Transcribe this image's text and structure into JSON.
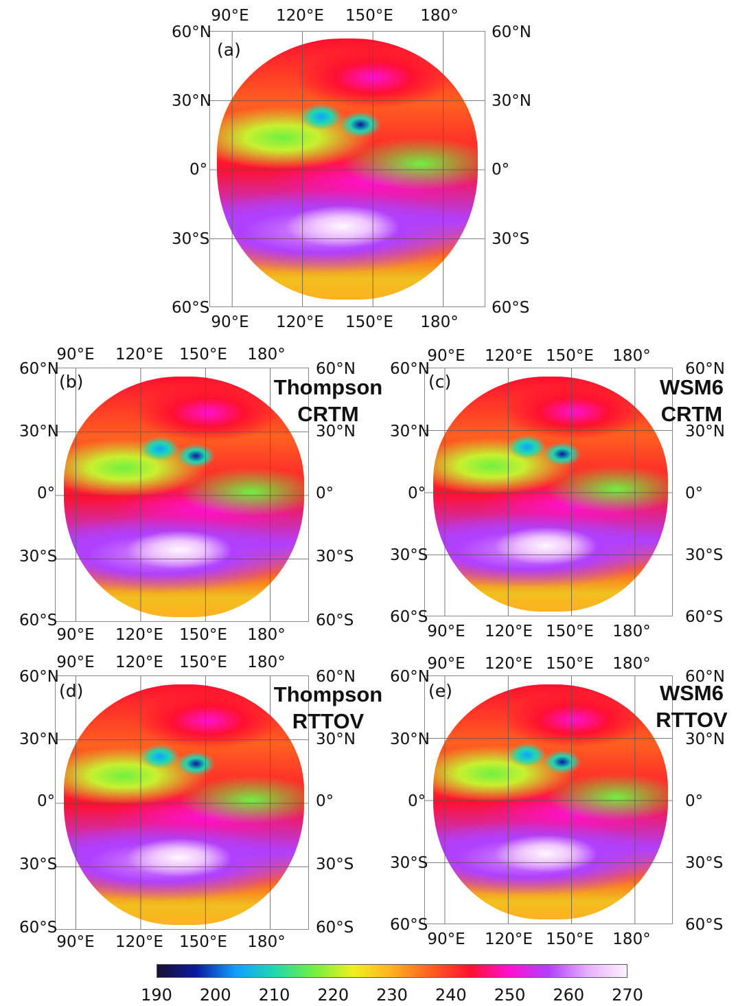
{
  "top_lon_labels": [
    "90°E",
    "120°E",
    "150°E",
    "180°"
  ],
  "bottom_lon_labels": [
    "90°E",
    "120°E",
    "150°E",
    "180°"
  ],
  "lat_labels": [
    "60°N",
    "30°N",
    "0°",
    "30°S",
    "60°S"
  ],
  "panels": [
    {
      "id": "a",
      "label": "(a)",
      "title_lines": []
    },
    {
      "id": "b",
      "label": "(b)",
      "title_lines": [
        "Thompson",
        "CRTM"
      ]
    },
    {
      "id": "c",
      "label": "(c)",
      "title_lines": [
        "WSM6",
        "CRTM"
      ]
    },
    {
      "id": "d",
      "label": "(d)",
      "title_lines": [
        "Thompson",
        "RTTOV"
      ]
    },
    {
      "id": "e",
      "label": "(e)",
      "title_lines": [
        "WSM6",
        "RTTOV"
      ]
    }
  ],
  "colorbar": {
    "ticks": [
      "190",
      "200",
      "210",
      "220",
      "230",
      "240",
      "250",
      "260",
      "270"
    ],
    "colors": [
      "#1a1030",
      "#0a1aa0",
      "#10a0ff",
      "#20d8b0",
      "#70f040",
      "#f0f020",
      "#ffb020",
      "#ff6020",
      "#ff1030",
      "#ff10d0",
      "#b040ff",
      "#e8b0ff",
      "#fff0ff"
    ]
  }
}
